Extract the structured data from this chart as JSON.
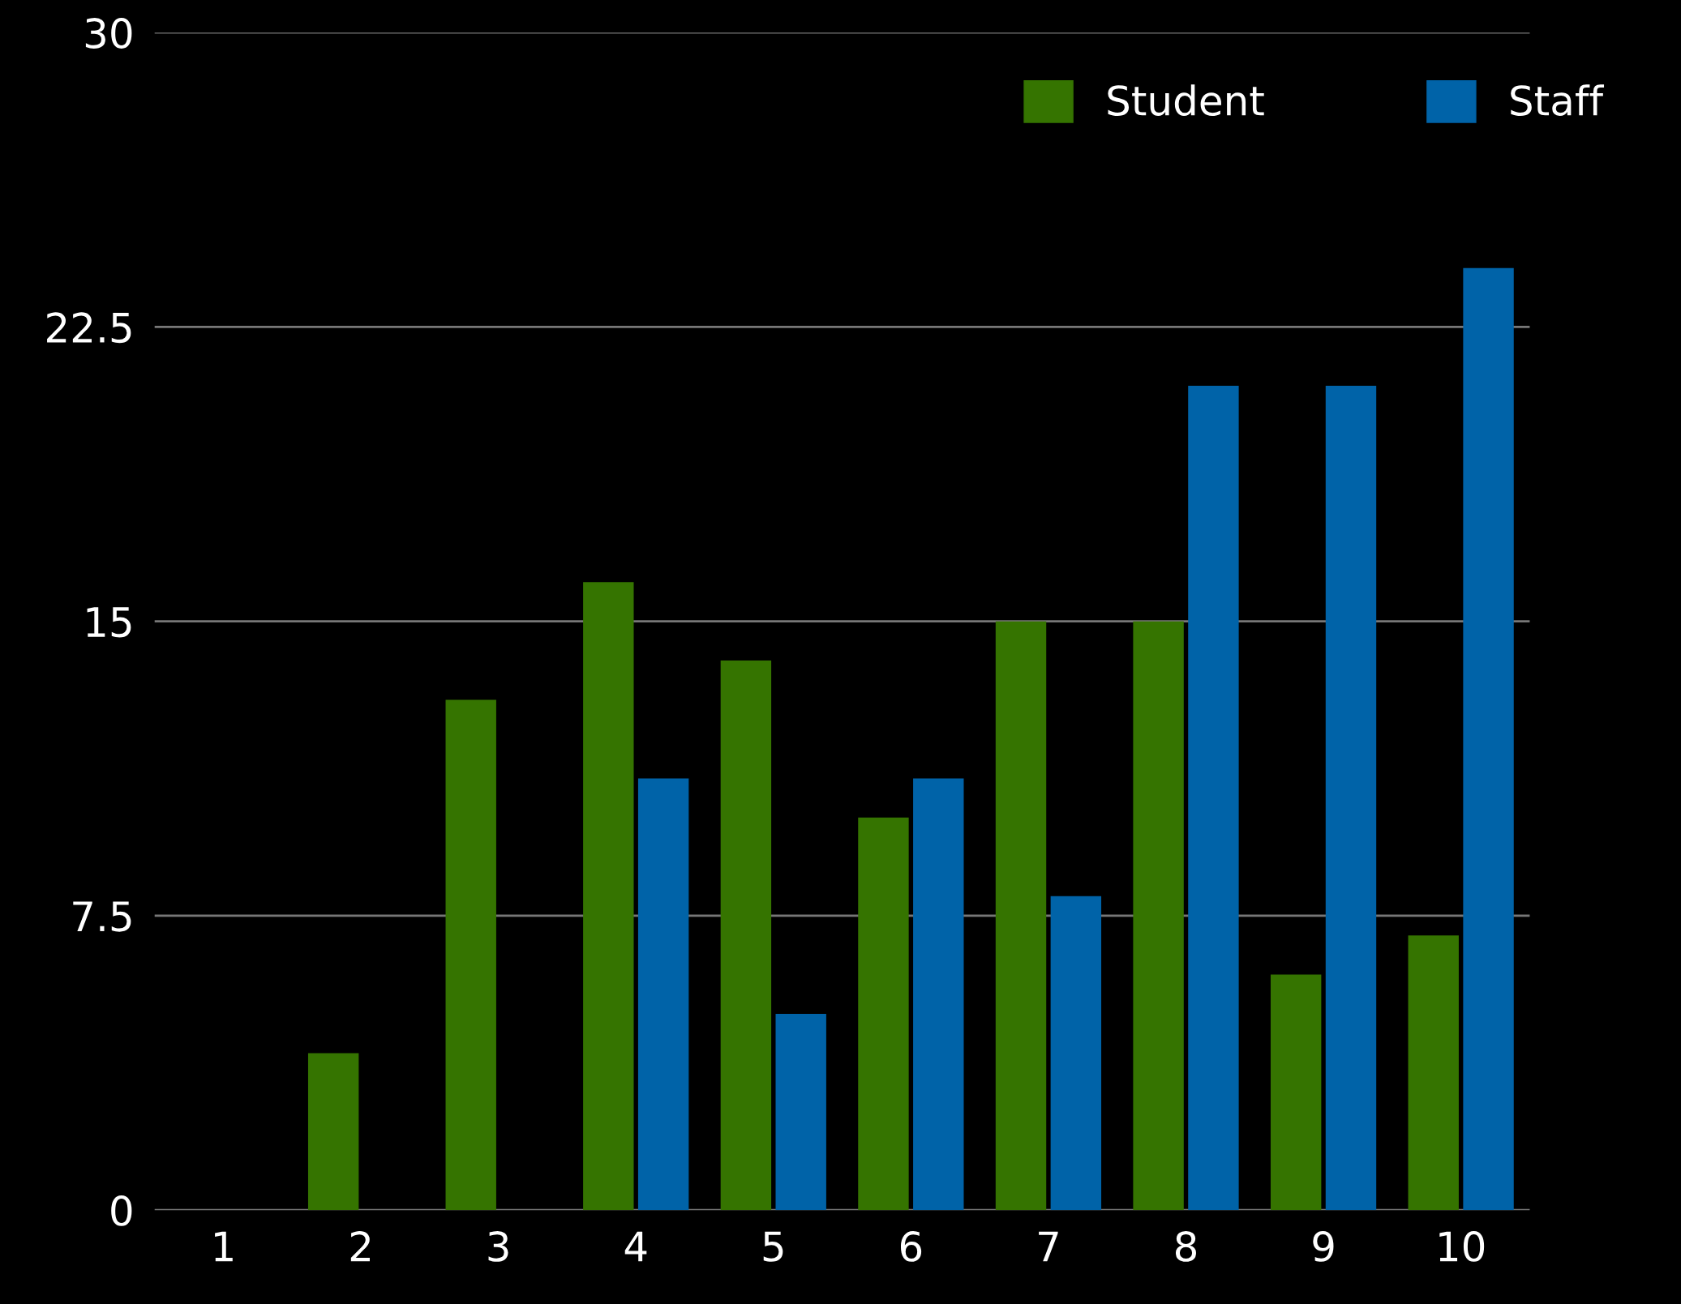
{
  "chart_data": {
    "type": "bar",
    "categories": [
      "1",
      "2",
      "3",
      "4",
      "5",
      "6",
      "7",
      "8",
      "9",
      "10"
    ],
    "series": [
      {
        "name": "Student",
        "color": "#357400",
        "values": [
          0,
          4,
          13,
          16,
          14,
          10,
          15,
          15,
          6,
          7
        ]
      },
      {
        "name": "Staff",
        "color": "#0063a8",
        "values": [
          0,
          0,
          0,
          11,
          5,
          11,
          8,
          21,
          21,
          24
        ]
      }
    ],
    "ylim": [
      0,
      30
    ],
    "yticks": [
      0,
      7.5,
      15,
      22.5,
      30
    ],
    "grid": "y",
    "legend": "top right"
  }
}
